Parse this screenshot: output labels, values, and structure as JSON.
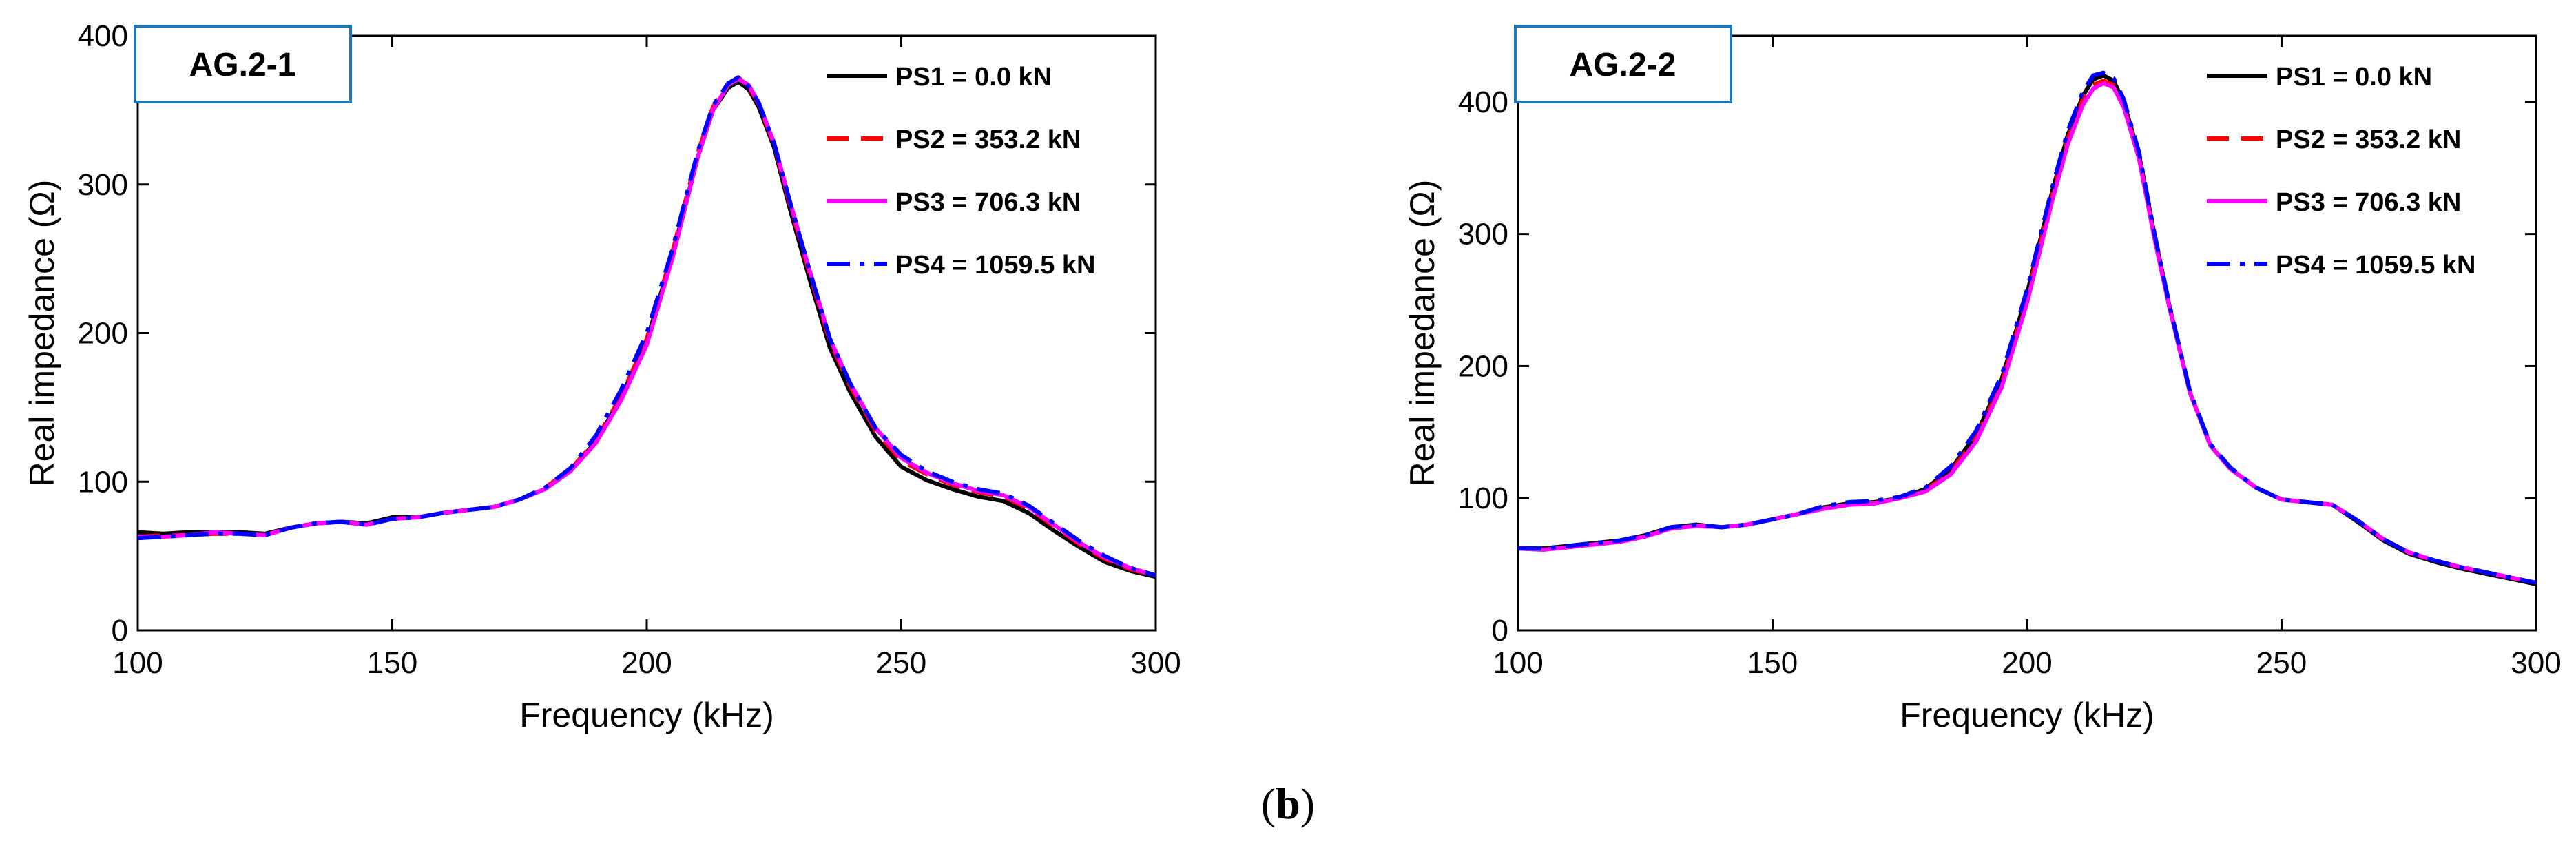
{
  "caption": {
    "open": "(",
    "letter": "b",
    "close": ")"
  },
  "chart_data": [
    {
      "type": "line",
      "panel_label": "AG.2-1",
      "xlabel": "Frequency (kHz)",
      "ylabel": "Real impedance (Ω)",
      "xlim": [
        100,
        300
      ],
      "ylim": [
        0,
        400
      ],
      "xticks": [
        100,
        150,
        200,
        250,
        300
      ],
      "yticks": [
        0,
        100,
        200,
        300,
        400
      ],
      "series": [
        {
          "name": "PS1 = 0.0 kN",
          "color": "#000000",
          "dash": "solid",
          "x": [
            100,
            105,
            110,
            115,
            120,
            125,
            130,
            135,
            140,
            145,
            150,
            155,
            160,
            165,
            170,
            175,
            180,
            185,
            190,
            195,
            200,
            205,
            210,
            213,
            216,
            218,
            220,
            222,
            225,
            228,
            232,
            236,
            240,
            245,
            250,
            255,
            260,
            265,
            270,
            275,
            280,
            285,
            290,
            295,
            300
          ],
          "y": [
            66,
            65,
            66,
            66,
            66,
            65,
            69,
            72,
            73,
            72,
            76,
            76,
            79,
            81,
            83,
            88,
            95,
            107,
            127,
            157,
            195,
            252,
            318,
            350,
            365,
            369,
            364,
            352,
            325,
            285,
            236,
            190,
            160,
            130,
            110,
            101,
            95,
            90,
            87,
            79,
            67,
            56,
            46,
            40,
            36
          ]
        },
        {
          "name": "PS2 = 353.2 kN",
          "color": "#ff0000",
          "dash": "dashed",
          "x": [
            100,
            105,
            110,
            115,
            120,
            125,
            130,
            135,
            140,
            145,
            150,
            155,
            160,
            165,
            170,
            175,
            180,
            185,
            190,
            195,
            200,
            205,
            210,
            213,
            216,
            218,
            220,
            222,
            225,
            228,
            232,
            236,
            240,
            245,
            250,
            255,
            260,
            265,
            270,
            275,
            280,
            285,
            290,
            295,
            300
          ],
          "y": [
            63,
            64,
            64,
            65,
            65,
            64,
            69,
            72,
            73,
            71,
            75,
            76,
            79,
            81,
            83,
            88,
            96,
            108,
            128,
            158,
            196,
            254,
            321,
            352,
            368,
            372,
            366,
            354,
            327,
            288,
            240,
            194,
            164,
            134,
            114,
            105,
            98,
            93,
            90,
            82,
            70,
            58,
            48,
            41,
            37
          ]
        },
        {
          "name": "PS3 = 706.3 kN",
          "color": "#ff00ff",
          "dash": "solid",
          "x": [
            100,
            105,
            110,
            115,
            120,
            125,
            130,
            135,
            140,
            145,
            150,
            155,
            160,
            165,
            170,
            175,
            180,
            185,
            190,
            195,
            200,
            205,
            210,
            213,
            216,
            218,
            220,
            222,
            225,
            228,
            232,
            236,
            240,
            245,
            250,
            255,
            260,
            265,
            270,
            275,
            280,
            285,
            290,
            295,
            300
          ],
          "y": [
            63,
            63,
            64,
            66,
            65,
            64,
            69,
            72,
            73,
            71,
            75,
            76,
            79,
            81,
            83,
            88,
            95,
            107,
            126,
            155,
            192,
            250,
            318,
            350,
            367,
            371,
            367,
            355,
            328,
            290,
            242,
            196,
            166,
            136,
            116,
            106,
            99,
            94,
            91,
            83,
            71,
            59,
            49,
            42,
            37
          ]
        },
        {
          "name": "PS4 = 1059.5 kN",
          "color": "#0000ff",
          "dash": "dashdot",
          "x": [
            100,
            105,
            110,
            115,
            120,
            125,
            130,
            135,
            140,
            145,
            150,
            155,
            160,
            165,
            170,
            175,
            180,
            185,
            190,
            195,
            200,
            205,
            210,
            213,
            216,
            218,
            220,
            222,
            225,
            228,
            232,
            236,
            240,
            245,
            250,
            255,
            260,
            265,
            270,
            275,
            280,
            285,
            290,
            295,
            300
          ],
          "y": [
            62,
            63,
            64,
            65,
            65,
            64,
            69,
            72,
            73,
            71,
            75,
            76,
            79,
            81,
            83,
            88,
            96,
            109,
            131,
            162,
            200,
            256,
            322,
            353,
            368,
            372,
            366,
            355,
            328,
            290,
            242,
            196,
            166,
            136,
            118,
            107,
            100,
            95,
            92,
            84,
            72,
            60,
            50,
            42,
            37
          ]
        }
      ]
    },
    {
      "type": "line",
      "panel_label": "AG.2-2",
      "xlabel": "Frequency (kHz)",
      "ylabel": "Real impedance (Ω)",
      "xlim": [
        100,
        300
      ],
      "ylim": [
        0,
        450
      ],
      "xticks": [
        100,
        150,
        200,
        250,
        300
      ],
      "yticks": [
        0,
        100,
        200,
        300,
        400
      ],
      "series": [
        {
          "name": "PS1 = 0.0 kN",
          "color": "#000000",
          "dash": "solid",
          "x": [
            100,
            105,
            110,
            115,
            120,
            125,
            130,
            135,
            140,
            145,
            150,
            155,
            160,
            165,
            170,
            175,
            180,
            185,
            190,
            195,
            200,
            205,
            208,
            211,
            213,
            215,
            217,
            219,
            222,
            225,
            228,
            232,
            236,
            240,
            245,
            250,
            255,
            260,
            265,
            270,
            275,
            280,
            285,
            290,
            295,
            300
          ],
          "y": [
            62,
            62,
            64,
            66,
            68,
            72,
            78,
            80,
            78,
            80,
            84,
            88,
            93,
            96,
            97,
            100,
            107,
            122,
            148,
            190,
            255,
            333,
            375,
            405,
            417,
            420,
            416,
            400,
            360,
            300,
            245,
            180,
            140,
            122,
            108,
            99,
            97,
            95,
            82,
            68,
            58,
            52,
            47,
            43,
            39,
            35
          ]
        },
        {
          "name": "PS2 = 353.2 kN",
          "color": "#ff0000",
          "dash": "dashed",
          "x": [
            100,
            105,
            110,
            115,
            120,
            125,
            130,
            135,
            140,
            145,
            150,
            155,
            160,
            165,
            170,
            175,
            180,
            185,
            190,
            195,
            200,
            205,
            208,
            211,
            213,
            215,
            217,
            219,
            222,
            225,
            228,
            232,
            236,
            240,
            245,
            250,
            255,
            260,
            265,
            270,
            275,
            280,
            285,
            290,
            295,
            300
          ],
          "y": [
            62,
            61,
            63,
            65,
            67,
            71,
            77,
            79,
            78,
            80,
            84,
            88,
            92,
            95,
            96,
            100,
            106,
            120,
            146,
            187,
            252,
            330,
            372,
            402,
            413,
            416,
            413,
            398,
            358,
            298,
            244,
            180,
            140,
            122,
            108,
            99,
            97,
            95,
            83,
            69,
            59,
            53,
            48,
            44,
            40,
            36
          ]
        },
        {
          "name": "PS3 = 706.3 kN",
          "color": "#ff00ff",
          "dash": "solid",
          "x": [
            100,
            105,
            110,
            115,
            120,
            125,
            130,
            135,
            140,
            145,
            150,
            155,
            160,
            165,
            170,
            175,
            180,
            185,
            190,
            195,
            200,
            205,
            208,
            211,
            213,
            215,
            217,
            219,
            222,
            225,
            228,
            232,
            236,
            240,
            245,
            250,
            255,
            260,
            265,
            270,
            275,
            280,
            285,
            290,
            295,
            300
          ],
          "y": [
            62,
            61,
            63,
            65,
            67,
            71,
            77,
            79,
            78,
            80,
            84,
            88,
            92,
            95,
            96,
            100,
            105,
            118,
            143,
            184,
            248,
            326,
            368,
            398,
            410,
            414,
            411,
            396,
            357,
            297,
            244,
            180,
            140,
            122,
            108,
            99,
            97,
            95,
            83,
            69,
            59,
            53,
            48,
            44,
            40,
            36
          ]
        },
        {
          "name": "PS4 = 1059.5 kN",
          "color": "#0000ff",
          "dash": "dashdot",
          "x": [
            100,
            105,
            110,
            115,
            120,
            125,
            130,
            135,
            140,
            145,
            150,
            155,
            160,
            165,
            170,
            175,
            180,
            185,
            190,
            195,
            200,
            205,
            208,
            211,
            213,
            215,
            217,
            219,
            222,
            225,
            228,
            232,
            236,
            240,
            245,
            250,
            255,
            260,
            265,
            270,
            275,
            280,
            285,
            290,
            295,
            300
          ],
          "y": [
            62,
            62,
            64,
            66,
            68,
            72,
            78,
            80,
            78,
            80,
            84,
            88,
            94,
            97,
            98,
            101,
            108,
            124,
            151,
            193,
            258,
            336,
            378,
            408,
            420,
            422,
            418,
            402,
            362,
            301,
            246,
            181,
            141,
            123,
            108,
            99,
            97,
            95,
            83,
            69,
            59,
            53,
            48,
            44,
            40,
            36
          ]
        }
      ]
    }
  ]
}
